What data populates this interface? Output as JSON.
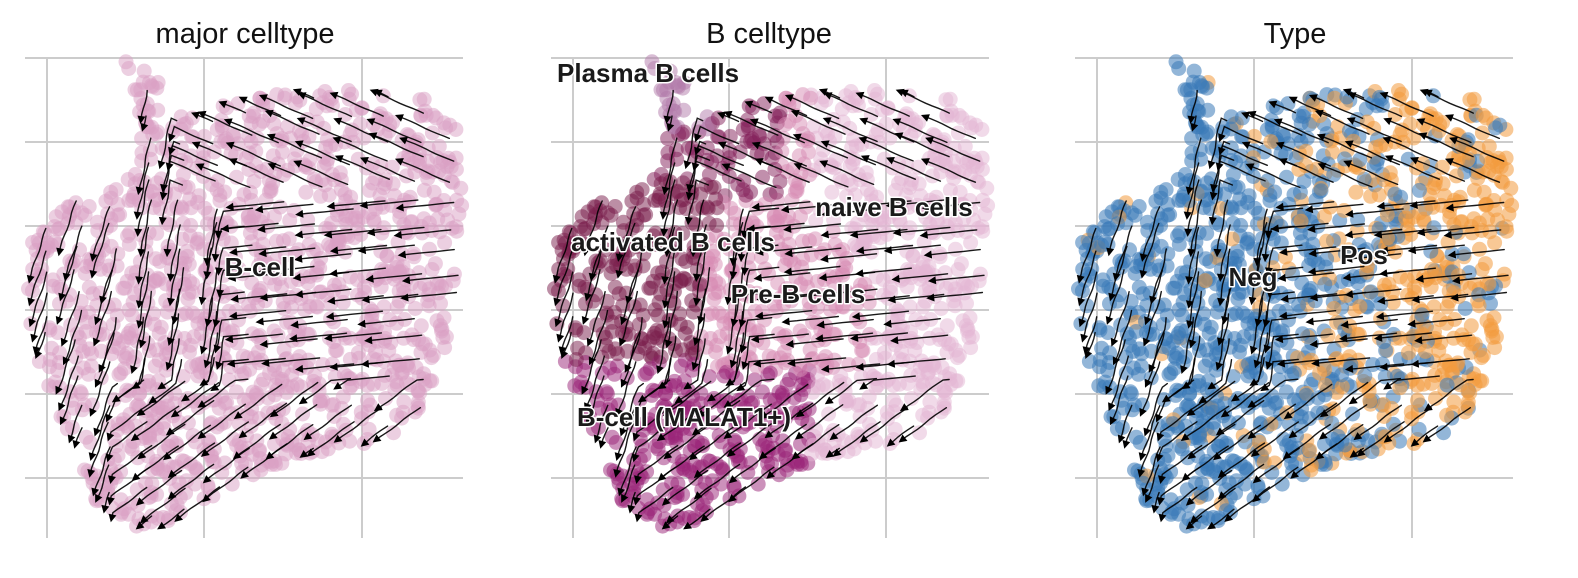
{
  "chart_data": [
    {
      "type": "scatter",
      "subtype": "umap-velocity-stream",
      "title": "major celltype",
      "grid": true,
      "legend": "on data",
      "series": [
        {
          "name": "B-cell",
          "color": "#d9a0c4"
        }
      ],
      "labels": [
        "B-cell"
      ]
    },
    {
      "type": "scatter",
      "subtype": "umap-velocity-stream",
      "title": "B celltype",
      "grid": true,
      "legend": "on data",
      "series": [
        {
          "name": "Plasma B cells",
          "color": "#b27aa9"
        },
        {
          "name": "naive B cells",
          "color": "#e4b6d4"
        },
        {
          "name": "activated B cells",
          "color": "#7a1e4c"
        },
        {
          "name": "Pre-B cells",
          "color": "#d88bb4"
        },
        {
          "name": "B-cell (MALAT1+)",
          "color": "#9a2378"
        }
      ],
      "labels": [
        "Plasma B cells",
        "naive B cells",
        "activated B cells",
        "Pre-B cells",
        "B-cell (MALAT1+)"
      ]
    },
    {
      "type": "scatter",
      "subtype": "umap-velocity-stream",
      "title": "Type",
      "grid": true,
      "legend": "on data",
      "series": [
        {
          "name": "Neg",
          "color": "#3a7ab8"
        },
        {
          "name": "Pos",
          "color": "#f29a3e"
        }
      ],
      "labels": [
        "Neg",
        "Pos"
      ]
    }
  ]
}
